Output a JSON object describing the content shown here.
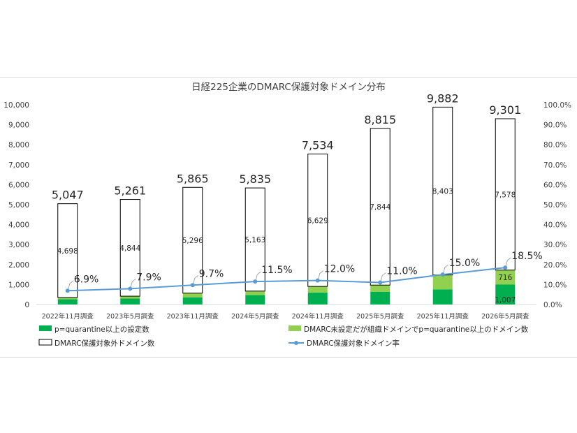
{
  "chart_data": {
    "type": "bar",
    "stacked": true,
    "title": "日経225企業のDMARC保護対象ドメイン分布",
    "categories": [
      "2022年11月調査",
      "2023年5月調査",
      "2023年11月調査",
      "2024年5月調査",
      "2024年11月調査",
      "2025年5月調査",
      "2025年11月調査",
      "2026年5月調査"
    ],
    "series": [
      {
        "name": "p=quarantine以上の設定数",
        "type": "bar",
        "axis": "left",
        "color": "#00b050",
        "values": [
          260,
          300,
          360,
          470,
          600,
          640,
          760,
          1007
        ],
        "labels": [
          "",
          "",
          "",
          "",
          "",
          "",
          "",
          "1,007"
        ]
      },
      {
        "name": "DMARC未設定だが組織ドメインでp=quarantine以上のドメイン数",
        "type": "bar",
        "axis": "left",
        "color": "#92d050",
        "values": [
          89,
          117,
          209,
          202,
          305,
          331,
          719,
          716
        ],
        "labels": [
          "",
          "",
          "",
          "",
          "",
          "",
          "",
          "716"
        ]
      },
      {
        "name": "DMARC保護対象外ドメイン数",
        "type": "bar",
        "axis": "left",
        "color": "#ffffff",
        "stroke": "#000000",
        "values": [
          4698,
          4844,
          5296,
          5163,
          6629,
          7844,
          8403,
          7578
        ],
        "labels": [
          "4,698",
          "4,844",
          "5,296",
          "5,163",
          "6,629",
          "7,844",
          "8,403",
          "7,578"
        ]
      },
      {
        "name": "DMARC保護対象ドメイン率",
        "type": "line",
        "axis": "right",
        "color": "#5b9bd5",
        "values": [
          6.9,
          7.9,
          9.7,
          11.5,
          12.0,
          11.0,
          15.0,
          18.5
        ],
        "labels": [
          "6.9%",
          "7.9%",
          "9.7%",
          "11.5%",
          "12.0%",
          "11.0%",
          "15.0%",
          "18.5%"
        ]
      }
    ],
    "totals": [
      5047,
      5261,
      5865,
      5835,
      7534,
      8815,
      9882,
      9301
    ],
    "total_labels": [
      "5,047",
      "5,261",
      "5,865",
      "5,835",
      "7,534",
      "8,815",
      "9,882",
      "9,301"
    ],
    "y_left": {
      "min": 0,
      "max": 10000,
      "step": 1000,
      "ticks": [
        "0",
        "1,000",
        "2,000",
        "3,000",
        "4,000",
        "5,000",
        "6,000",
        "7,000",
        "8,000",
        "9,000",
        "10,000"
      ]
    },
    "y_right": {
      "min": 0,
      "max": 100,
      "step": 10,
      "ticks": [
        "0.0%",
        "10.0%",
        "20.0%",
        "30.0%",
        "40.0%",
        "50.0%",
        "60.0%",
        "70.0%",
        "80.0%",
        "90.0%",
        "100.0%"
      ]
    },
    "grid": false,
    "legend_position": "bottom"
  }
}
